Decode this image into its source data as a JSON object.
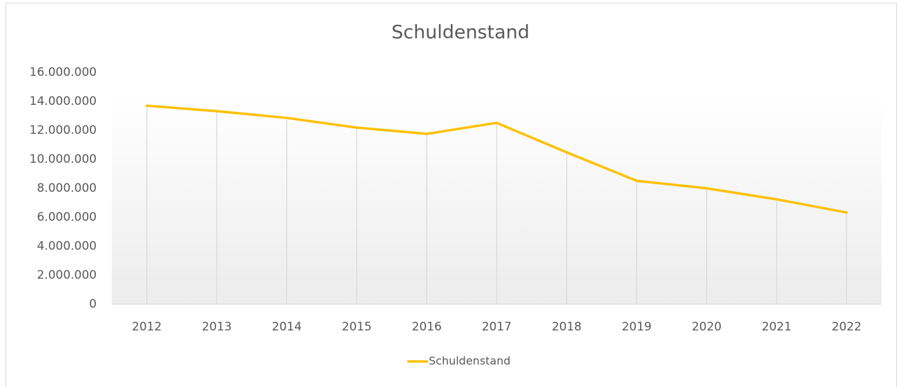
{
  "chart_data": {
    "type": "line",
    "title": "Schuldenstand",
    "categories": [
      "2012",
      "2013",
      "2014",
      "2015",
      "2016",
      "2017",
      "2018",
      "2019",
      "2020",
      "2021",
      "2022"
    ],
    "series": [
      {
        "name": "Schuldenstand",
        "color": "#ffc000",
        "values": [
          13700000,
          13330000,
          12860000,
          12190000,
          11760000,
          12520000,
          10480000,
          8520000,
          8000000,
          7240000,
          6330000
        ]
      }
    ],
    "ylim": [
      0,
      16000000
    ],
    "yticks": [
      0,
      {
        "value": 2000000,
        "label": "2.000.000"
      },
      {
        "value": 4000000,
        "label": "4.000.000"
      },
      {
        "value": 6000000,
        "label": "6.000.000"
      },
      {
        "value": 8000000,
        "label": "8.000.000"
      },
      {
        "value": 10000000,
        "label": "10.000.000"
      },
      {
        "value": 12000000,
        "label": "12.000.000"
      },
      {
        "value": 14000000,
        "label": "14.000.000"
      },
      {
        "value": 16000000,
        "label": "16.000.000"
      }
    ],
    "drop_lines": true,
    "legend": "bottom"
  }
}
